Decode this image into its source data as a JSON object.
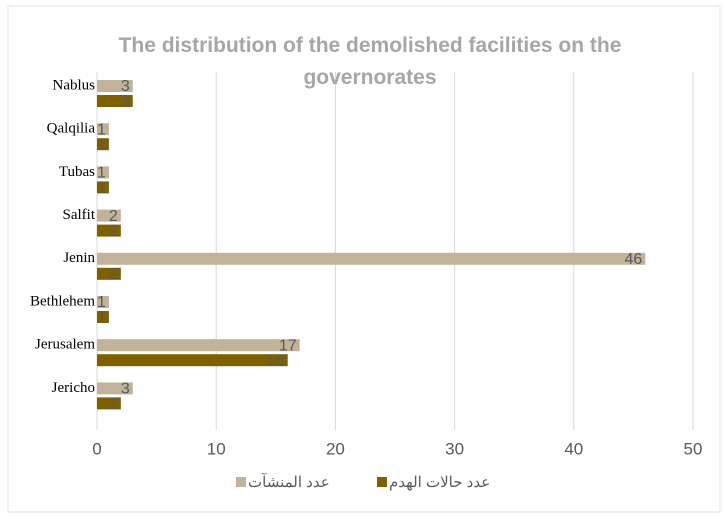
{
  "chart_data": {
    "type": "bar",
    "orientation": "horizontal",
    "title": "The distribution of the demolished facilities on the governorates",
    "categories": [
      "Nablus",
      "Qalqilia",
      "Tubas",
      "Salfit",
      "Jenin",
      "Bethlehem",
      "Jerusalem",
      "Jericho"
    ],
    "series": [
      {
        "name": "عدد المنشآت",
        "color": "#c0b39a",
        "values": [
          3,
          1,
          1,
          2,
          46,
          1,
          17,
          3
        ]
      },
      {
        "name": "عدد حالات الهدم",
        "color": "#7f6000",
        "values": [
          3,
          1,
          1,
          2,
          2,
          1,
          16,
          2
        ]
      }
    ],
    "xlim": [
      0,
      50
    ],
    "xticks": [
      0,
      10,
      20,
      30,
      40,
      50
    ],
    "grid": true
  }
}
